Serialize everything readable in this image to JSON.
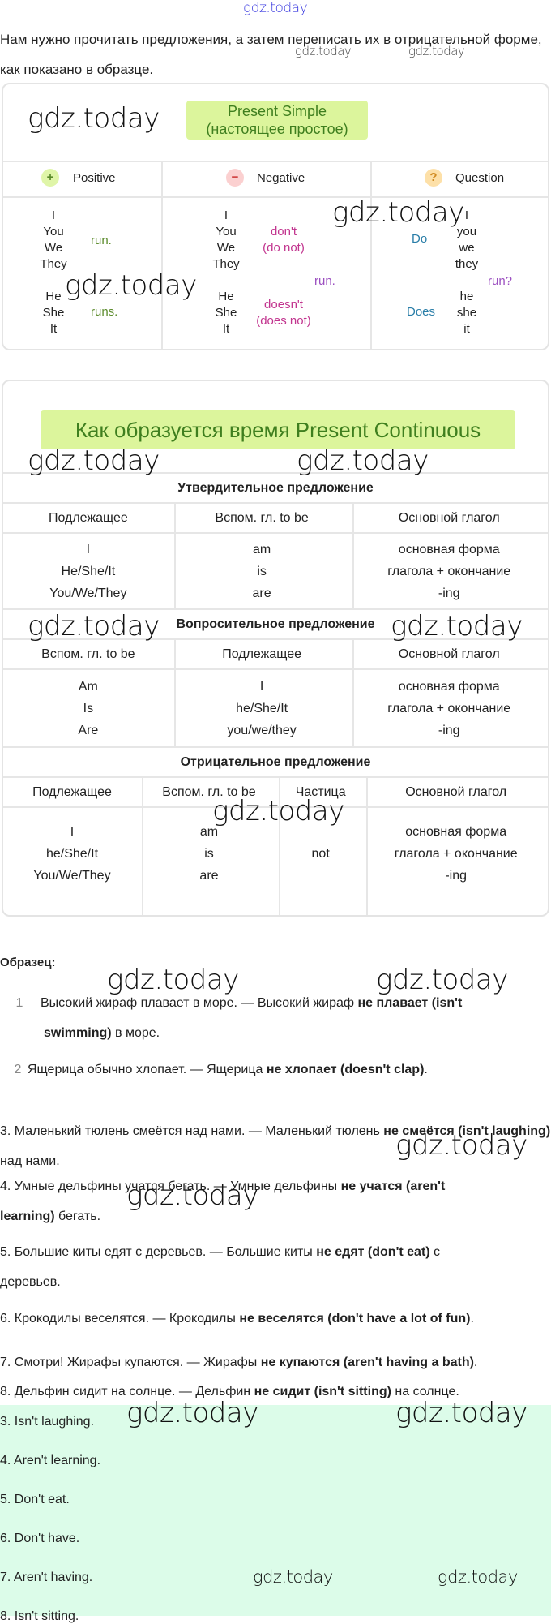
{
  "watermark": "gdz.today",
  "intro": "Нам нужно прочитать предложения, а затем переписать их в отрицательной форме, как показано в образце.",
  "present_simple": {
    "title_line1": "Present  Simple",
    "title_line2": "(настоящее простое)",
    "headers": {
      "positive": "Positive",
      "negative": "Negative",
      "question": "Question",
      "plus": "+",
      "minus": "−",
      "q": "?"
    },
    "positive": {
      "group1": [
        "I",
        "You",
        "We",
        "They"
      ],
      "verb1": "run.",
      "group2": [
        "He",
        "She",
        "It"
      ],
      "verb2": "runs."
    },
    "negative": {
      "group1": [
        "I",
        "You",
        "We",
        "They"
      ],
      "aux1": [
        "don't",
        "(do not)"
      ],
      "verb": "run.",
      "group2": [
        "He",
        "She",
        "It"
      ],
      "aux2": [
        "doesn't",
        "(does not)"
      ]
    },
    "question": {
      "aux1": "Do",
      "group1": [
        "I",
        "you",
        "we",
        "they"
      ],
      "verb": "run?",
      "aux2": "Does",
      "group2": [
        "he",
        "she",
        "it"
      ]
    },
    "colors": {
      "verb": "#5a8a2a",
      "negative_aux": "#c2358f",
      "question_aux": "#2a7ea8",
      "question_verb": "#9b4fc0"
    }
  },
  "present_continuous": {
    "title": "Как образуется время Present Continuous",
    "affirmative": {
      "title": "Утвердительное предложение",
      "headers": [
        "Подлежащее",
        "Вспом. гл. to be",
        "Основной глагол"
      ],
      "cells": [
        "I\nHe/She/It\nYou/We/They",
        "am\nis\nare",
        "основная форма\nглагола + окончание\n-ing"
      ]
    },
    "interrogative": {
      "title": "Вопросительное предложение",
      "headers": [
        "Вспом. гл. to be",
        "Подлежащее",
        "Основной глагол"
      ],
      "cells": [
        "Am\nIs\nAre",
        "I\nhe/She/It\nyou/we/they",
        "основная форма\nглагола + окончание\n-ing"
      ]
    },
    "negative": {
      "title": "Отрицательное предложение",
      "headers": [
        "Подлежащее",
        "Вспом. гл. to be",
        "Частица",
        "Основной глагол"
      ],
      "cells": [
        "I\nhe/She/It\nYou/We/They",
        "am\nis\nare",
        "not",
        "основная форма\nглагола + окончание\n-ing"
      ]
    }
  },
  "sample_label": "Образец:",
  "examples": [
    {
      "num": "1",
      "a": "Высокий жираф плавает в море. — Высокий жираф ",
      "b": "не плавает (isn't swimming)",
      "c": " в море."
    },
    {
      "num": "2",
      "a": "Ящерица обычно хлопает. — Ящерица ",
      "b": "не хлопает (doesn't clap)",
      "c": "."
    }
  ],
  "sentences": [
    {
      "a": "3. Маленький тюлень смеётся над нами. — Маленький тюлень ",
      "b": "не смеётся (isn't laughing)",
      "c": " над нами."
    },
    {
      "a": "4. Умные дельфины учатся бегать. — Умные дельфины ",
      "b": "не учатся (aren't learning)",
      "c": " бегать."
    },
    {
      "a": "5. Большие киты едят с деревьев. — Большие киты ",
      "b": "не едят (don't eat)",
      "c": " с деревьев."
    },
    {
      "a": "6. Крокодилы веселятся. — Крокодилы ",
      "b": "не веселятся (don't have a lot of fun)",
      "c": "."
    },
    {
      "a": "7. Смотри! Жирафы купаются. — Жирафы ",
      "b": "не купаются (aren't having a bath)",
      "c": "."
    },
    {
      "a": "8. Дельфин сидит на солнце. — Дельфин ",
      "b": "не сидит (isn't sitting)",
      "c": " на солнце."
    }
  ],
  "answers": [
    "3. Isn't laughing.",
    "4. Aren't learning.",
    "5. Don't eat.",
    "6. Don't have.",
    "7. Aren't having.",
    "8. Isn't sitting."
  ],
  "answers_bg": "#dcfce9"
}
